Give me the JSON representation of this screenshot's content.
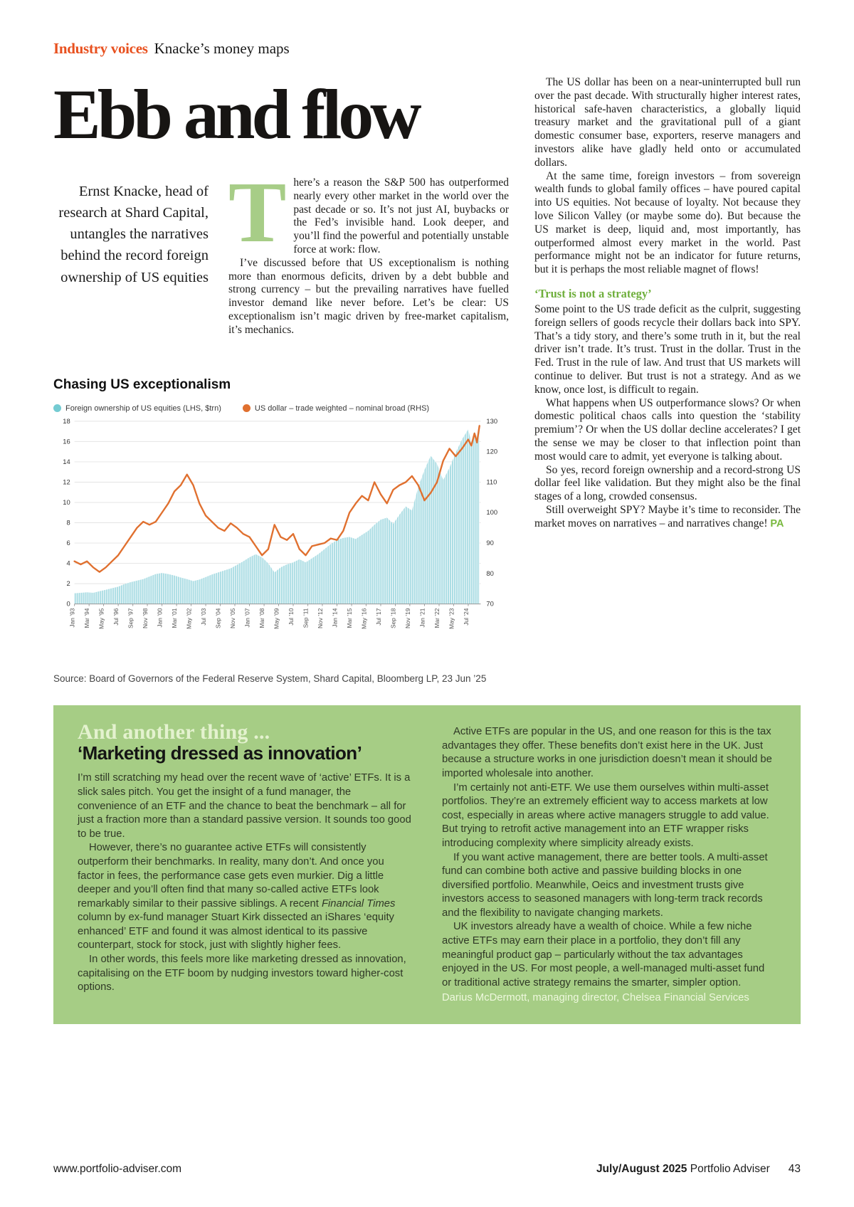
{
  "header": {
    "section": "Industry voices",
    "column_title": "Knacke’s money maps"
  },
  "colors": {
    "accent_orange": "#e8501e",
    "accent_green": "#79b93f",
    "panel_green": "#a6cd85",
    "dropcap_green": "#a7cd87"
  },
  "article": {
    "headline": "Ebb and flow",
    "standfirst": "Ernst Knacke, head of research at Shard Capital, untangles the narratives behind the record foreign ownership of US equities",
    "dropcap": "T",
    "col1_p1": "here’s a reason the S&P 500 has outperformed nearly every other market in the world over the past decade or so. It’s not just AI, buybacks or the Fed’s invisible hand. Look deeper, and you’ll find the powerful and potentially unstable force at work: flow.",
    "col1_p2": "I’ve discussed before that US exceptionalism is nothing more than enormous deficits, driven by a debt bubble and strong currency – but the prevailing narratives have fuelled investor demand like never before. Let’s be clear: US exceptionalism isn’t magic driven by free-market capitalism, it’s mechanics.",
    "col2_p1": "The US dollar has been on a near-uninterrupted bull run over the past decade. With structurally higher interest rates, historical safe-haven characteristics, a globally liquid treasury market and the gravitational pull of a giant domestic consumer base, exporters, reserve managers and investors alike have gladly held onto or accumulated dollars.",
    "col2_p2": "At the same time, foreign investors – from sovereign wealth funds to global family offices – have poured capital into US equities. Not because of loyalty. Not because they love Silicon Valley (or maybe some do). But because the US market is deep, liquid and, most importantly, has outperformed almost every market in the world. Past performance might not be an indicator for future returns, but it is perhaps the most reliable magnet of flows!",
    "subhead": "‘Trust is not a strategy’",
    "col2_p3": "Some point to the US trade deficit as the culprit, suggesting foreign sellers of goods recycle their dollars back into SPY. That’s a tidy story, and there’s some truth in it, but the real driver isn’t trade. It’s trust. Trust in the dollar. Trust in the Fed. Trust in the rule of law. And trust that US markets will continue to deliver. But trust is not a strategy. And as we know, once lost, is difficult to regain.",
    "col2_p4": "What happens when US outperformance slows? Or when domestic political chaos calls into question the ‘stability premium’? Or when the US dollar decline accelerates? I get the sense we may be closer to that inflection point than most would care to admit, yet everyone is talking about.",
    "col2_p5": "So yes, record foreign ownership and a record-strong US dollar feel like validation. But they might also be the final stages of a long, crowded consensus.",
    "col2_p6": "Still overweight SPY? Maybe it’s time to reconsider. The market moves on narratives – and narratives change!",
    "end_mark": "PA"
  },
  "chart_data": {
    "type": "area+line",
    "title": "Chasing US exceptionalism",
    "source": "Source: Board of Governors of the Federal Reserve System, Shard Capital, Bloomberg LP, 23 Jun ’25",
    "x_range": [
      1993,
      2025.5
    ],
    "left_axis": {
      "min": 0,
      "max": 18,
      "step": 2
    },
    "right_axis": {
      "min": 70,
      "max": 130,
      "step": 10
    },
    "grid": true,
    "legend_position": "top",
    "x_tick_labels": [
      "Jan ’93",
      "Mar ’94",
      "May ’95",
      "Jul ’96",
      "Sep ’97",
      "Nov ’98",
      "Jan ’00",
      "Mar ’01",
      "May ’02",
      "Jul ’03",
      "Sep ’04",
      "Nov ’05",
      "Jan ’07",
      "Mar ’08",
      "May ’09",
      "Jul ’10",
      "Sep ’11",
      "Nov ’12",
      "Jan ’14",
      "Mar ’15",
      "May ’16",
      "Jul ’17",
      "Sep ’18",
      "Nov ’19",
      "Jan ’21",
      "Mar ’22",
      "May ’23",
      "Jul ’24"
    ],
    "x_tick_pos": [
      1993.0,
      1994.17,
      1995.33,
      1996.5,
      1997.67,
      1998.83,
      2000.0,
      2001.17,
      2002.33,
      2003.5,
      2004.67,
      2005.83,
      2007.0,
      2008.17,
      2009.33,
      2010.5,
      2011.67,
      2012.83,
      2014.0,
      2015.17,
      2016.33,
      2017.5,
      2018.67,
      2019.83,
      2021.0,
      2022.17,
      2023.33,
      2024.5
    ],
    "series": [
      {
        "name": "Foreign ownership of US equities (LHS, $trn)",
        "axis": "left",
        "type": "area",
        "color": "#74cbd2",
        "fill": "#abdde4",
        "points": [
          [
            1993.0,
            1.05
          ],
          [
            1993.5,
            1.1
          ],
          [
            1994.0,
            1.15
          ],
          [
            1994.5,
            1.1
          ],
          [
            1995.0,
            1.25
          ],
          [
            1995.5,
            1.4
          ],
          [
            1996.0,
            1.55
          ],
          [
            1996.5,
            1.7
          ],
          [
            1997.0,
            1.95
          ],
          [
            1997.5,
            2.15
          ],
          [
            1998.0,
            2.3
          ],
          [
            1998.5,
            2.45
          ],
          [
            1999.0,
            2.7
          ],
          [
            1999.5,
            2.95
          ],
          [
            2000.0,
            3.05
          ],
          [
            2000.5,
            2.95
          ],
          [
            2001.0,
            2.8
          ],
          [
            2001.5,
            2.6
          ],
          [
            2002.0,
            2.45
          ],
          [
            2002.5,
            2.25
          ],
          [
            2003.0,
            2.4
          ],
          [
            2003.5,
            2.65
          ],
          [
            2004.0,
            2.9
          ],
          [
            2004.5,
            3.1
          ],
          [
            2005.0,
            3.3
          ],
          [
            2005.5,
            3.5
          ],
          [
            2006.0,
            3.85
          ],
          [
            2006.5,
            4.2
          ],
          [
            2007.0,
            4.6
          ],
          [
            2007.5,
            4.9
          ],
          [
            2008.0,
            4.6
          ],
          [
            2008.5,
            4.0
          ],
          [
            2009.0,
            3.1
          ],
          [
            2009.5,
            3.6
          ],
          [
            2010.0,
            3.9
          ],
          [
            2010.5,
            4.1
          ],
          [
            2011.0,
            4.4
          ],
          [
            2011.5,
            4.1
          ],
          [
            2012.0,
            4.5
          ],
          [
            2012.5,
            4.9
          ],
          [
            2013.0,
            5.4
          ],
          [
            2013.5,
            5.9
          ],
          [
            2014.0,
            6.3
          ],
          [
            2014.5,
            6.5
          ],
          [
            2015.0,
            6.6
          ],
          [
            2015.5,
            6.4
          ],
          [
            2016.0,
            6.8
          ],
          [
            2016.5,
            7.2
          ],
          [
            2017.0,
            7.8
          ],
          [
            2017.5,
            8.3
          ],
          [
            2018.0,
            8.5
          ],
          [
            2018.5,
            7.9
          ],
          [
            2019.0,
            8.8
          ],
          [
            2019.5,
            9.6
          ],
          [
            2020.0,
            9.2
          ],
          [
            2020.5,
            11.5
          ],
          [
            2021.0,
            13.2
          ],
          [
            2021.5,
            14.6
          ],
          [
            2022.0,
            13.8
          ],
          [
            2022.5,
            12.2
          ],
          [
            2023.0,
            13.4
          ],
          [
            2023.5,
            14.9
          ],
          [
            2024.0,
            16.2
          ],
          [
            2024.5,
            17.2
          ],
          [
            2024.75,
            15.9
          ],
          [
            2025.0,
            17.0
          ],
          [
            2025.2,
            16.4
          ],
          [
            2025.4,
            17.8
          ]
        ]
      },
      {
        "name": "US dollar – trade weighted – nominal broad (RHS)",
        "axis": "right",
        "type": "line",
        "color": "#e0702f",
        "points": [
          [
            1993.0,
            84
          ],
          [
            1993.5,
            83
          ],
          [
            1994.0,
            84
          ],
          [
            1994.5,
            82
          ],
          [
            1995.0,
            80.5
          ],
          [
            1995.5,
            82
          ],
          [
            1996.0,
            84
          ],
          [
            1996.5,
            86
          ],
          [
            1997.0,
            89
          ],
          [
            1997.5,
            92
          ],
          [
            1998.0,
            95
          ],
          [
            1998.5,
            97
          ],
          [
            1999.0,
            96
          ],
          [
            1999.5,
            97
          ],
          [
            2000.0,
            100
          ],
          [
            2000.5,
            103
          ],
          [
            2001.0,
            107
          ],
          [
            2001.5,
            109
          ],
          [
            2002.0,
            112.5
          ],
          [
            2002.5,
            109
          ],
          [
            2003.0,
            103
          ],
          [
            2003.5,
            99
          ],
          [
            2004.0,
            97
          ],
          [
            2004.5,
            95
          ],
          [
            2005.0,
            94
          ],
          [
            2005.5,
            96.5
          ],
          [
            2006.0,
            95
          ],
          [
            2006.5,
            93
          ],
          [
            2007.0,
            92
          ],
          [
            2007.5,
            89
          ],
          [
            2008.0,
            86
          ],
          [
            2008.5,
            88
          ],
          [
            2009.0,
            96
          ],
          [
            2009.5,
            92
          ],
          [
            2010.0,
            91
          ],
          [
            2010.5,
            93
          ],
          [
            2011.0,
            88
          ],
          [
            2011.5,
            86
          ],
          [
            2012.0,
            89
          ],
          [
            2012.5,
            89.5
          ],
          [
            2013.0,
            90
          ],
          [
            2013.5,
            91.5
          ],
          [
            2014.0,
            91
          ],
          [
            2014.5,
            94
          ],
          [
            2015.0,
            100
          ],
          [
            2015.5,
            103
          ],
          [
            2016.0,
            105.5
          ],
          [
            2016.5,
            104
          ],
          [
            2017.0,
            110
          ],
          [
            2017.5,
            106
          ],
          [
            2018.0,
            103
          ],
          [
            2018.5,
            107.5
          ],
          [
            2019.0,
            109
          ],
          [
            2019.5,
            110
          ],
          [
            2020.0,
            112
          ],
          [
            2020.5,
            109
          ],
          [
            2021.0,
            104
          ],
          [
            2021.5,
            106.5
          ],
          [
            2022.0,
            110
          ],
          [
            2022.5,
            117
          ],
          [
            2023.0,
            121
          ],
          [
            2023.5,
            118.5
          ],
          [
            2024.0,
            121
          ],
          [
            2024.5,
            124
          ],
          [
            2024.75,
            122
          ],
          [
            2025.0,
            126
          ],
          [
            2025.2,
            123
          ],
          [
            2025.4,
            128.5
          ]
        ]
      }
    ]
  },
  "panel": {
    "kicker": "And another thing ...",
    "title": "‘Marketing dressed as innovation’",
    "left_p1": "I’m still scratching my head over the recent wave of ‘active’ ETFs. It is a slick sales pitch. You get the insight of a fund manager, the convenience of an ETF and the chance to beat the benchmark – all for just a fraction more than a standard passive version. It sounds too good to be true.",
    "left_p2_before": "However, there’s no guarantee active ETFs will consistently outperform their benchmarks. In reality, many don’t. And once you factor in fees, the performance case gets even murkier. Dig a little deeper and you’ll often find that many so-called active ETFs look remarkably similar to their passive siblings. A recent ",
    "left_p2_italic": "Financial Times",
    "left_p2_after": " column by ex-fund manager Stuart Kirk dissected an iShares ‘equity enhanced’ ETF and found it was almost identical to its passive counterpart, stock for stock, just with slightly higher fees.",
    "left_p3": "In other words, this feels more like marketing dressed as innovation, capitalising on the ETF boom by nudging investors toward higher-cost options.",
    "right_p1": "Active ETFs are popular in the US, and one reason for this is the tax advantages they offer. These benefits don’t exist here in the UK. Just because a structure works in one jurisdiction doesn’t mean it should be imported wholesale into another.",
    "right_p2": "I’m certainly not anti-ETF. We use them ourselves within multi-asset portfolios. They’re an extremely efficient way to access markets at low cost, especially in areas where active managers struggle to add value. But trying to retrofit active management into an ETF wrapper risks introducing complexity where simplicity already exists.",
    "right_p3": "If you want active management, there are better tools. A multi-asset fund can combine both active and passive building blocks in one diversified portfolio. Meanwhile, Oeics and investment trusts give investors access to seasoned managers with long-term track records and the flexibility to navigate changing markets.",
    "right_p4": "UK investors already have a wealth of choice. While a few niche active ETFs may earn their place in a portfolio, they don’t fill any meaningful product gap – particularly without the tax advantages enjoyed in the US. For most people, a well-managed multi-asset fund or traditional active strategy remains the smarter, simpler option.",
    "attribution": "Darius McDermott, managing director, Chelsea Financial Services"
  },
  "footer": {
    "website": "www.portfolio-adviser.com",
    "issue": "July/August 2025",
    "magazine": " Portfolio Adviser",
    "page_number": "43"
  }
}
